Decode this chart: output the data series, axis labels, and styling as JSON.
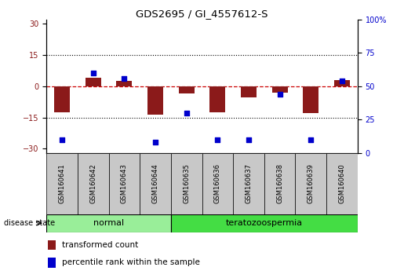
{
  "title": "GDS2695 / GI_4557612-S",
  "samples": [
    "GSM160641",
    "GSM160642",
    "GSM160643",
    "GSM160644",
    "GSM160635",
    "GSM160636",
    "GSM160637",
    "GSM160638",
    "GSM160639",
    "GSM160640"
  ],
  "transformed_count": [
    -12.5,
    4.0,
    2.5,
    -13.5,
    -3.5,
    -12.5,
    -5.5,
    -3.0,
    -13.0,
    3.0
  ],
  "percentile_rank_pct": [
    10,
    60,
    56,
    8,
    30,
    10,
    10,
    44,
    10,
    54
  ],
  "groups": [
    {
      "label": "normal",
      "n": 4,
      "color": "#99EE99"
    },
    {
      "label": "teratozoospermia",
      "n": 6,
      "color": "#44DD44"
    }
  ],
  "ylim_left": [
    -32,
    32
  ],
  "ylim_right": [
    0,
    100
  ],
  "yticks_left": [
    -30,
    -15,
    0,
    15,
    30
  ],
  "yticks_right": [
    0,
    25,
    50,
    75,
    100
  ],
  "bar_color": "#8B1A1A",
  "dot_color": "#0000CC",
  "zero_line_color": "#CC0000",
  "grid_color": "#000000",
  "legend_labels": [
    "transformed count",
    "percentile rank within the sample"
  ],
  "bar_width": 0.5
}
